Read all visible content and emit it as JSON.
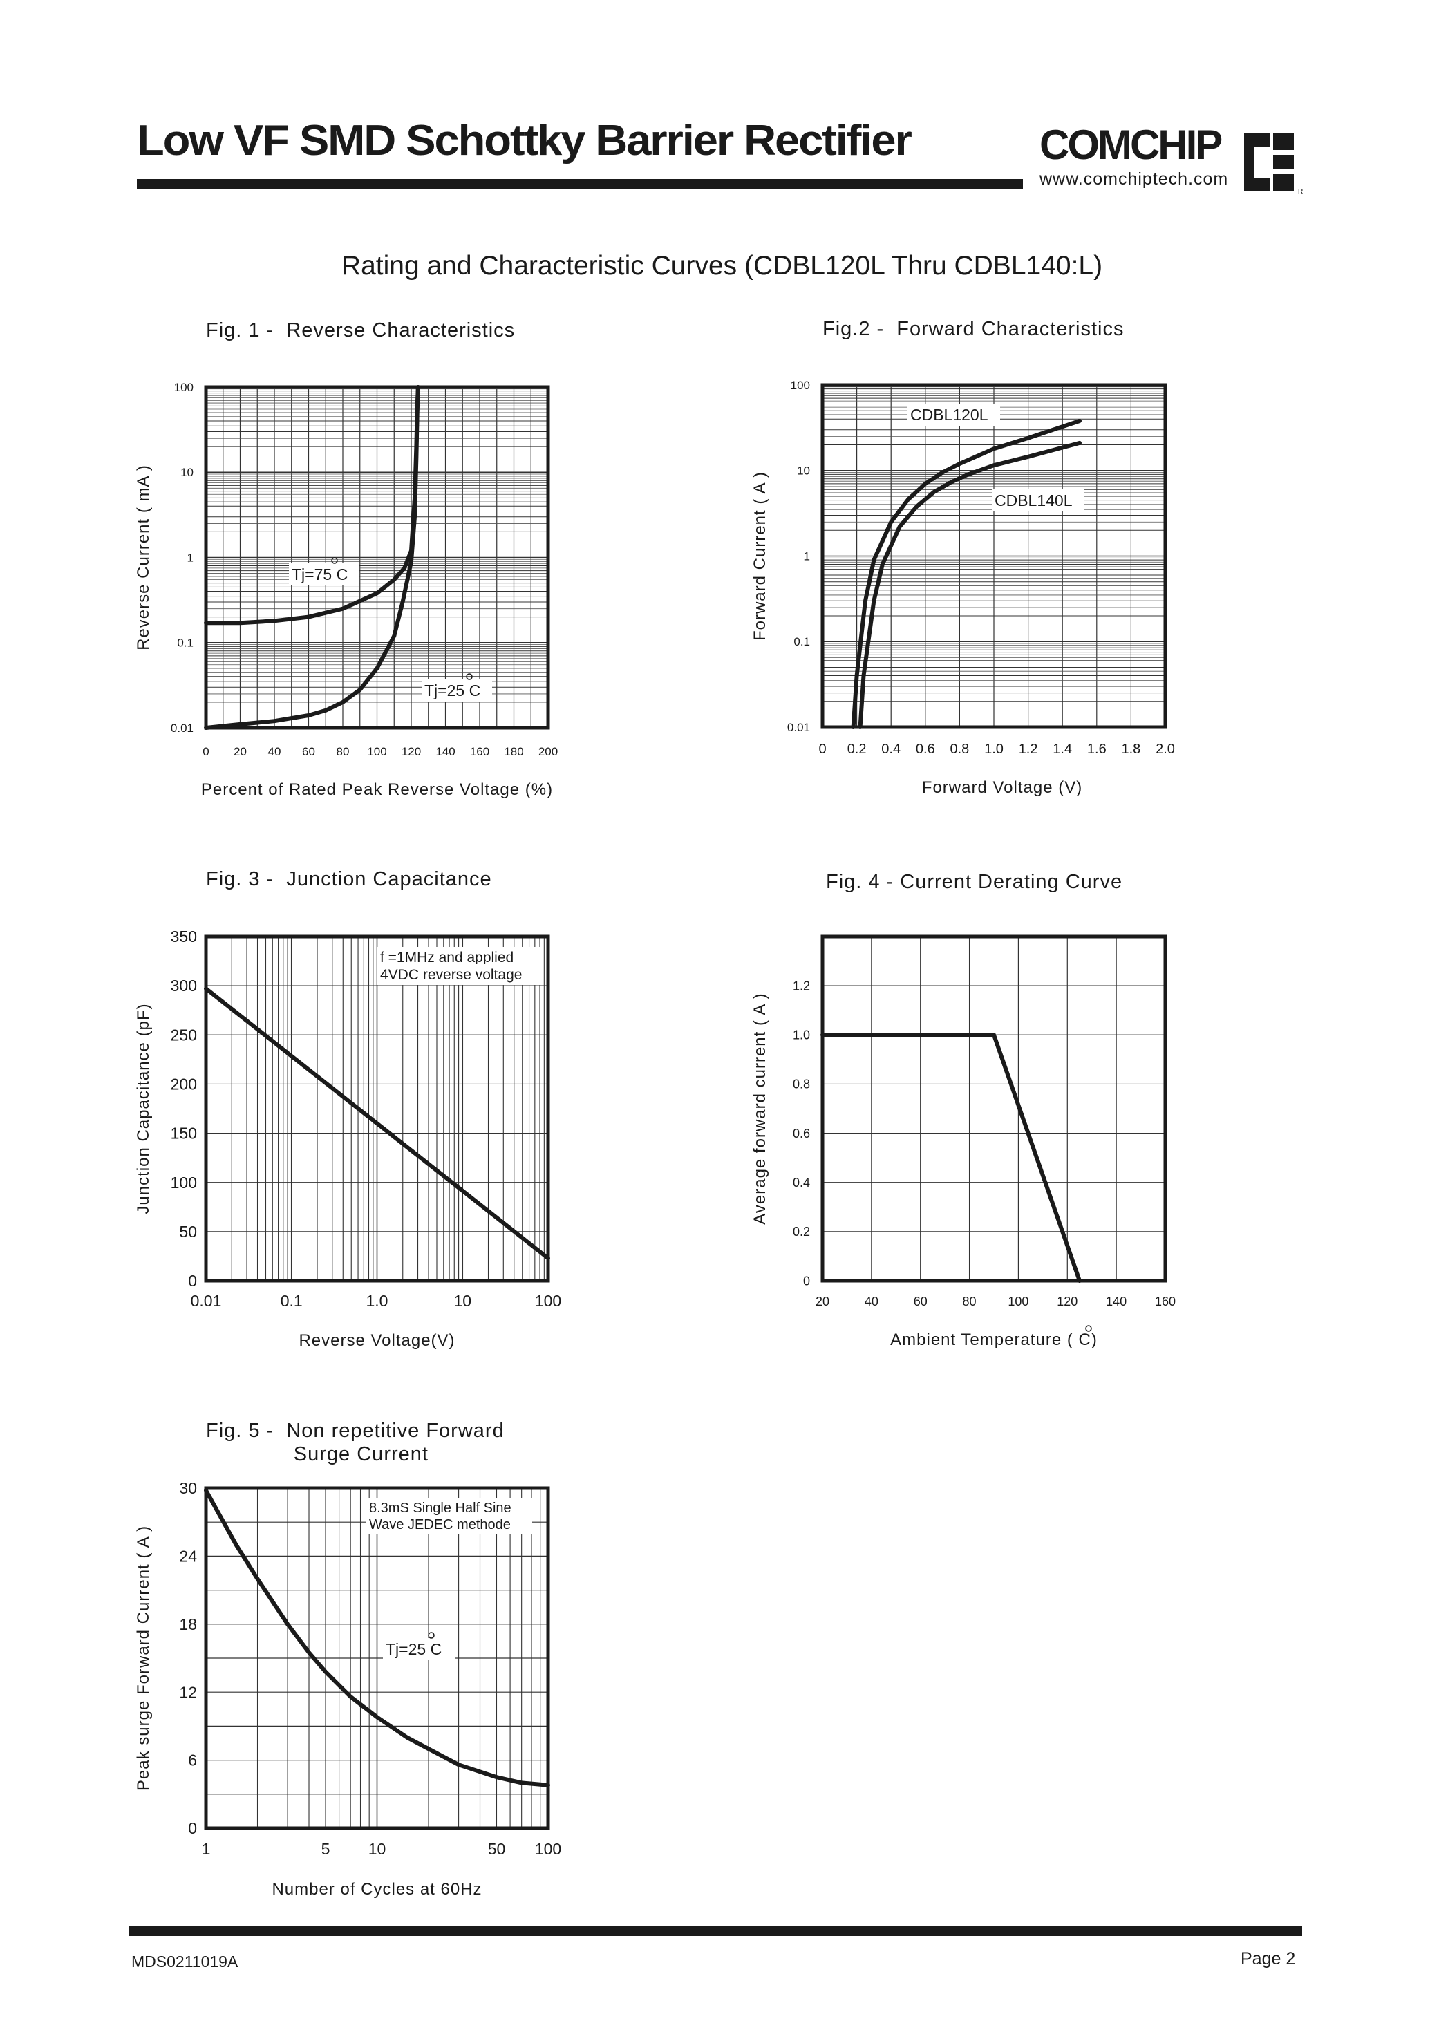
{
  "header": {
    "title": "Low VF SMD Schottky Barrier Rectifier",
    "brand": "COMCHIP",
    "url": "www.comchiptech.com"
  },
  "main_title": "Rating and Characteristic Curves (CDBL120L Thru CDBL140:L)",
  "footer": {
    "doc_code": "MDS0211019A",
    "page": "Page 2"
  },
  "chart_data": [
    {
      "type": "line",
      "title": "Fig. 1 -  Reverse Characteristics",
      "xlabel": "Percent of Rated Peak Reverse Voltage (%)",
      "ylabel": "Reverse Current ( mA )",
      "xlim": [
        0,
        200
      ],
      "ylim": [
        0.01,
        100
      ],
      "yscale": "log",
      "grid": true,
      "x_ticks": [
        "0",
        "20",
        "40",
        "60",
        "80",
        "100",
        "120",
        "140",
        "160",
        "180",
        "200"
      ],
      "y_ticks": [
        "0.01",
        "0.1",
        "1",
        "10",
        "100"
      ],
      "annotations": [
        "Tj=75 C",
        "Tj=25 C"
      ],
      "series": [
        {
          "name": "Tj=75 C",
          "x": [
            0,
            20,
            40,
            60,
            80,
            100,
            110,
            116,
            120,
            122,
            123,
            123.5,
            124
          ],
          "y": [
            0.17,
            0.17,
            0.18,
            0.2,
            0.25,
            0.38,
            0.55,
            0.75,
            1.2,
            5,
            20,
            60,
            100
          ]
        },
        {
          "name": "Tj=25 C",
          "x": [
            0,
            20,
            40,
            60,
            70,
            80,
            90,
            100,
            110,
            115,
            120,
            122,
            123,
            123.5,
            124
          ],
          "y": [
            0.01,
            0.011,
            0.012,
            0.014,
            0.016,
            0.02,
            0.028,
            0.05,
            0.12,
            0.3,
            0.9,
            3,
            15,
            50,
            100
          ]
        }
      ]
    },
    {
      "type": "line",
      "title": "Fig.2 -  Forward Characteristics",
      "xlabel": "Forward Voltage (V)",
      "ylabel": "Forward Current ( A )",
      "xlim": [
        0,
        2.0
      ],
      "ylim": [
        0.01,
        100
      ],
      "yscale": "log",
      "grid": true,
      "x_ticks": [
        "0",
        "0.2",
        "0.4",
        "0.6",
        "0.8",
        "1.0",
        "1.2",
        "1.4",
        "1.6",
        "1.8",
        "2.0"
      ],
      "y_ticks": [
        "0.01",
        "0.1",
        "1",
        "10",
        "100"
      ],
      "series": [
        {
          "name": "CDBL120L",
          "x": [
            0.18,
            0.2,
            0.25,
            0.3,
            0.4,
            0.5,
            0.6,
            0.7,
            0.8,
            1.0,
            1.2,
            1.5
          ],
          "y": [
            0.01,
            0.04,
            0.3,
            0.9,
            2.5,
            4.6,
            7,
            9.5,
            12,
            18,
            24,
            38
          ]
        },
        {
          "name": "CDBL140L",
          "x": [
            0.22,
            0.24,
            0.3,
            0.35,
            0.45,
            0.55,
            0.65,
            0.75,
            0.85,
            1.0,
            1.2,
            1.5
          ],
          "y": [
            0.01,
            0.04,
            0.3,
            0.8,
            2.2,
            3.8,
            5.6,
            7.3,
            9,
            11.5,
            14.5,
            21
          ]
        }
      ]
    },
    {
      "type": "line",
      "title": "Fig. 3 -  Junction Capacitance",
      "xlabel": "Reverse Voltage(V)",
      "ylabel": "Junction Capacitance  (pF)",
      "xlim": [
        0.01,
        100
      ],
      "xscale": "log",
      "ylim": [
        0,
        350
      ],
      "grid": true,
      "x_ticks": [
        "0.01",
        "0.1",
        "1.0",
        "10",
        "100"
      ],
      "y_ticks": [
        "0",
        "50",
        "100",
        "150",
        "200",
        "250",
        "300",
        "350"
      ],
      "annotations": [
        "f =1MHz and applied",
        "4VDC reverse voltage"
      ],
      "series": [
        {
          "x": [
            0.01,
            100
          ],
          "y": [
            297,
            23
          ]
        }
      ]
    },
    {
      "type": "line",
      "title": "Fig. 4 - Current Derating Curve",
      "xlabel": "Ambient Temperature ( C)",
      "ylabel": "Average forward current ( A )",
      "xlim": [
        20,
        160
      ],
      "ylim": [
        0,
        1.4
      ],
      "grid": true,
      "x_ticks": [
        "20",
        "40",
        "60",
        "80",
        "100",
        "120",
        "140",
        "160"
      ],
      "y_ticks": [
        "0",
        "0.2",
        "0.4",
        "0.6",
        "0.8",
        "1.0",
        "1.2"
      ],
      "series": [
        {
          "x": [
            20,
            90,
            125
          ],
          "y": [
            1.0,
            1.0,
            0
          ]
        }
      ]
    },
    {
      "type": "line",
      "title": "Fig. 5 -  Non repetitive Forward\n              Surge Current",
      "xlabel": "Number of Cycles at 60Hz",
      "ylabel": "Peak surge Forward Current ( A )",
      "xlim": [
        1,
        100
      ],
      "xscale": "log",
      "ylim": [
        0,
        30
      ],
      "grid": true,
      "x_ticks": [
        "1",
        "5",
        "10",
        "50",
        "100"
      ],
      "y_ticks": [
        "0",
        "6",
        "12",
        "18",
        "24",
        "30"
      ],
      "annotations": [
        "8.3mS Single Half Sine",
        "Wave JEDEC methode",
        "Tj=25 C"
      ],
      "series": [
        {
          "x": [
            1,
            1.5,
            2,
            3,
            4,
            5,
            7,
            10,
            15,
            20,
            30,
            50,
            70,
            100
          ],
          "y": [
            29.8,
            25,
            22,
            18,
            15.5,
            13.8,
            11.6,
            9.8,
            8,
            7,
            5.6,
            4.5,
            4,
            3.8
          ]
        }
      ]
    }
  ]
}
